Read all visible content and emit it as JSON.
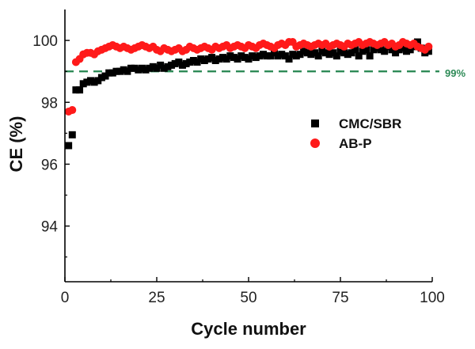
{
  "chart_data": {
    "type": "scatter",
    "xlabel": "Cycle number",
    "ylabel": "CE (%)",
    "xlim": [
      0,
      100
    ],
    "ylim": [
      92.2,
      101
    ],
    "xticks": [
      0,
      25,
      50,
      75,
      100
    ],
    "yticks": [
      94,
      96,
      98,
      100
    ],
    "grid": false,
    "legend_position": "right-middle",
    "reference_line": {
      "y": 99,
      "label": "99%",
      "color": "#2e8b57",
      "style": "dashed"
    },
    "series": [
      {
        "name": "CMC/SBR",
        "marker": "square",
        "color": "#000000",
        "x": [
          1,
          2,
          3,
          4,
          5,
          6,
          7,
          8,
          9,
          10,
          11,
          12,
          13,
          14,
          15,
          16,
          17,
          18,
          19,
          20,
          21,
          22,
          23,
          24,
          25,
          26,
          27,
          28,
          29,
          30,
          31,
          32,
          33,
          34,
          35,
          36,
          37,
          38,
          39,
          40,
          41,
          42,
          43,
          44,
          45,
          46,
          47,
          48,
          49,
          50,
          51,
          52,
          53,
          54,
          55,
          56,
          57,
          58,
          59,
          60,
          61,
          62,
          63,
          64,
          65,
          66,
          67,
          68,
          69,
          70,
          71,
          72,
          73,
          74,
          75,
          76,
          77,
          78,
          79,
          80,
          81,
          82,
          83,
          84,
          85,
          86,
          87,
          88,
          89,
          90,
          91,
          92,
          93,
          94,
          95,
          96,
          97,
          98,
          99
        ],
        "y": [
          96.6,
          96.95,
          98.4,
          98.4,
          98.6,
          98.65,
          98.7,
          98.65,
          98.7,
          98.8,
          98.85,
          98.95,
          98.95,
          99.0,
          99.0,
          99.05,
          99.0,
          99.1,
          99.1,
          99.05,
          99.1,
          99.05,
          99.1,
          99.15,
          99.1,
          99.2,
          99.1,
          99.15,
          99.2,
          99.25,
          99.3,
          99.2,
          99.25,
          99.3,
          99.35,
          99.3,
          99.4,
          99.35,
          99.4,
          99.45,
          99.35,
          99.4,
          99.45,
          99.4,
          99.5,
          99.45,
          99.4,
          99.5,
          99.45,
          99.4,
          99.5,
          99.45,
          99.5,
          99.55,
          99.5,
          99.5,
          99.6,
          99.5,
          99.55,
          99.5,
          99.4,
          99.55,
          99.5,
          99.55,
          99.65,
          99.6,
          99.55,
          99.6,
          99.5,
          99.65,
          99.6,
          99.55,
          99.6,
          99.5,
          99.65,
          99.6,
          99.55,
          99.6,
          99.7,
          99.5,
          99.65,
          99.7,
          99.5,
          99.7,
          99.75,
          99.7,
          99.65,
          99.8,
          99.7,
          99.6,
          99.7,
          99.75,
          99.65,
          99.7,
          99.8,
          99.95,
          99.75,
          99.6,
          99.65
        ]
      },
      {
        "name": "AB-P",
        "marker": "circle",
        "color": "#ff1a1a",
        "x": [
          1,
          2,
          3,
          4,
          5,
          6,
          7,
          8,
          9,
          10,
          11,
          12,
          13,
          14,
          15,
          16,
          17,
          18,
          19,
          20,
          21,
          22,
          23,
          24,
          25,
          26,
          27,
          28,
          29,
          30,
          31,
          32,
          33,
          34,
          35,
          36,
          37,
          38,
          39,
          40,
          41,
          42,
          43,
          44,
          45,
          46,
          47,
          48,
          49,
          50,
          51,
          52,
          53,
          54,
          55,
          56,
          57,
          58,
          59,
          60,
          61,
          62,
          63,
          64,
          65,
          66,
          67,
          68,
          69,
          70,
          71,
          72,
          73,
          74,
          75,
          76,
          77,
          78,
          79,
          80,
          81,
          82,
          83,
          84,
          85,
          86,
          87,
          88,
          89,
          90,
          91,
          92,
          93,
          94,
          95,
          96,
          97,
          98,
          99
        ],
        "y": [
          97.7,
          97.75,
          99.3,
          99.4,
          99.55,
          99.6,
          99.6,
          99.55,
          99.65,
          99.7,
          99.75,
          99.8,
          99.85,
          99.8,
          99.75,
          99.8,
          99.75,
          99.7,
          99.75,
          99.8,
          99.85,
          99.8,
          99.75,
          99.8,
          99.7,
          99.65,
          99.75,
          99.7,
          99.65,
          99.7,
          99.75,
          99.65,
          99.7,
          99.8,
          99.75,
          99.7,
          99.75,
          99.8,
          99.75,
          99.7,
          99.8,
          99.75,
          99.8,
          99.85,
          99.75,
          99.8,
          99.85,
          99.8,
          99.75,
          99.85,
          99.8,
          99.75,
          99.85,
          99.9,
          99.85,
          99.8,
          99.75,
          99.85,
          99.9,
          99.85,
          99.95,
          99.95,
          99.8,
          99.85,
          99.9,
          99.85,
          99.8,
          99.85,
          99.9,
          99.85,
          99.9,
          99.8,
          99.85,
          99.9,
          99.85,
          99.8,
          99.9,
          99.85,
          99.9,
          99.95,
          99.85,
          99.9,
          99.95,
          99.9,
          99.85,
          99.9,
          99.95,
          99.85,
          99.9,
          99.8,
          99.85,
          99.95,
          99.9,
          99.85,
          99.9,
          99.8,
          99.75,
          99.7,
          99.8
        ]
      }
    ]
  }
}
